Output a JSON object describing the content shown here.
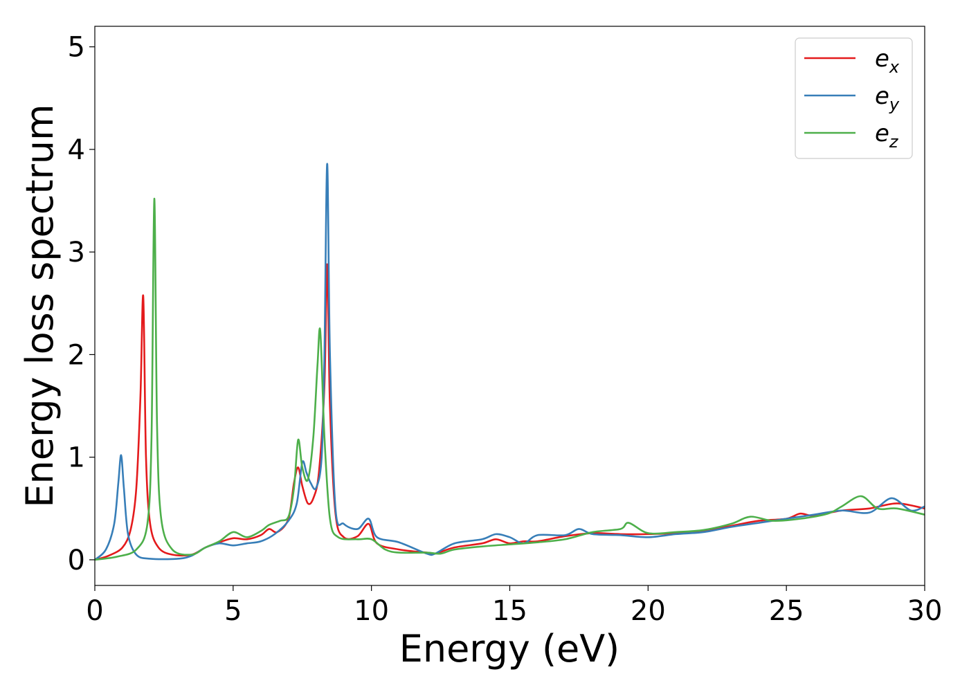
{
  "chart_data": {
    "type": "line",
    "title": "",
    "xlabel": "Energy (eV)",
    "ylabel": "Energy loss spectrum",
    "xlim": [
      0,
      30
    ],
    "ylim": [
      -0.25,
      5.2
    ],
    "xticks": [
      0,
      5,
      10,
      15,
      20,
      25,
      30
    ],
    "yticks": [
      0,
      1,
      2,
      3,
      4,
      5
    ],
    "grid": false,
    "legend_position": "top-right",
    "series": [
      {
        "name": "e",
        "subscript": "x",
        "color": "#e41a1c",
        "x": [
          0,
          0.5,
          1.0,
          1.3,
          1.5,
          1.65,
          1.75,
          1.85,
          2.0,
          2.3,
          2.8,
          3.5,
          4.0,
          4.5,
          5.0,
          5.5,
          6.0,
          6.3,
          6.6,
          7.0,
          7.2,
          7.35,
          7.5,
          7.7,
          7.9,
          8.1,
          8.3,
          8.4,
          8.5,
          8.7,
          9.0,
          9.5,
          9.9,
          10.2,
          11.0,
          12.0,
          12.3,
          13.0,
          14.0,
          14.5,
          15.0,
          15.5,
          16.0,
          17.0,
          18.0,
          19.0,
          20.0,
          21.0,
          22.0,
          23.0,
          24.0,
          25.0,
          25.5,
          26.0,
          27.0,
          28.0,
          29.0,
          30.0
        ],
        "y": [
          0.0,
          0.04,
          0.12,
          0.3,
          0.7,
          1.6,
          2.57,
          1.0,
          0.35,
          0.12,
          0.05,
          0.05,
          0.12,
          0.17,
          0.21,
          0.2,
          0.24,
          0.3,
          0.27,
          0.4,
          0.75,
          0.9,
          0.72,
          0.55,
          0.6,
          0.85,
          1.7,
          2.88,
          1.5,
          0.45,
          0.22,
          0.23,
          0.35,
          0.16,
          0.1,
          0.07,
          0.06,
          0.12,
          0.16,
          0.2,
          0.16,
          0.18,
          0.18,
          0.23,
          0.26,
          0.25,
          0.25,
          0.26,
          0.28,
          0.33,
          0.38,
          0.4,
          0.45,
          0.43,
          0.48,
          0.5,
          0.55,
          0.5
        ]
      },
      {
        "name": "e",
        "subscript": "y",
        "color": "#377eb8",
        "x": [
          0,
          0.4,
          0.7,
          0.85,
          0.95,
          1.05,
          1.2,
          1.5,
          2.0,
          3.0,
          3.5,
          4.0,
          4.5,
          5.0,
          5.5,
          6.0,
          6.5,
          7.0,
          7.3,
          7.5,
          7.65,
          7.8,
          8.0,
          8.2,
          8.3,
          8.4,
          8.5,
          8.7,
          9.0,
          9.5,
          9.9,
          10.2,
          11.0,
          12.0,
          12.3,
          13.0,
          14.0,
          14.5,
          15.0,
          15.5,
          16.0,
          17.0,
          17.5,
          18.0,
          19.0,
          20.0,
          21.0,
          22.0,
          23.0,
          24.0,
          25.0,
          26.0,
          27.0,
          28.0,
          28.8,
          29.5,
          30.0
        ],
        "y": [
          0.0,
          0.1,
          0.35,
          0.75,
          1.02,
          0.7,
          0.25,
          0.05,
          0.01,
          0.01,
          0.04,
          0.12,
          0.16,
          0.14,
          0.16,
          0.18,
          0.25,
          0.38,
          0.55,
          0.95,
          0.85,
          0.75,
          0.7,
          1.0,
          2.0,
          3.86,
          2.0,
          0.5,
          0.35,
          0.3,
          0.4,
          0.22,
          0.17,
          0.06,
          0.06,
          0.16,
          0.2,
          0.25,
          0.22,
          0.16,
          0.24,
          0.24,
          0.3,
          0.25,
          0.24,
          0.22,
          0.25,
          0.27,
          0.32,
          0.36,
          0.4,
          0.44,
          0.48,
          0.46,
          0.6,
          0.48,
          0.52
        ]
      },
      {
        "name": "e",
        "subscript": "z",
        "color": "#4daf4a",
        "x": [
          0,
          0.8,
          1.5,
          1.9,
          2.05,
          2.15,
          2.25,
          2.4,
          2.8,
          3.5,
          4.0,
          4.5,
          5.0,
          5.5,
          6.0,
          6.3,
          6.7,
          7.0,
          7.2,
          7.35,
          7.5,
          7.7,
          7.9,
          8.05,
          8.15,
          8.3,
          8.5,
          8.8,
          9.5,
          10.0,
          10.5,
          11.0,
          12.0,
          12.5,
          13.0,
          14.0,
          15.0,
          16.0,
          17.0,
          18.0,
          19.0,
          19.3,
          20.0,
          21.0,
          22.0,
          23.0,
          23.7,
          24.5,
          25.5,
          26.5,
          27.0,
          27.7,
          28.3,
          29.0,
          30.0
        ],
        "y": [
          0.0,
          0.03,
          0.1,
          0.35,
          1.2,
          3.52,
          1.3,
          0.4,
          0.1,
          0.05,
          0.12,
          0.18,
          0.27,
          0.22,
          0.28,
          0.34,
          0.38,
          0.42,
          0.7,
          1.17,
          0.9,
          0.78,
          1.2,
          1.9,
          2.23,
          1.2,
          0.4,
          0.22,
          0.2,
          0.2,
          0.1,
          0.07,
          0.07,
          0.06,
          0.1,
          0.13,
          0.15,
          0.17,
          0.2,
          0.27,
          0.3,
          0.36,
          0.26,
          0.27,
          0.29,
          0.35,
          0.42,
          0.38,
          0.4,
          0.45,
          0.52,
          0.62,
          0.5,
          0.5,
          0.44
        ]
      }
    ]
  }
}
